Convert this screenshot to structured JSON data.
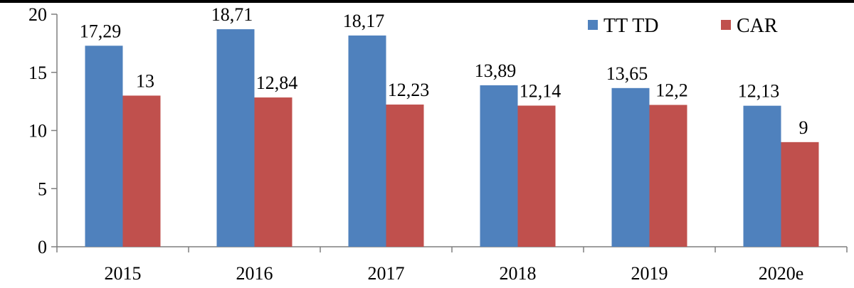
{
  "chart_data": {
    "type": "bar",
    "categories": [
      "2015",
      "2016",
      "2017",
      "2018",
      "2019",
      "2020e"
    ],
    "series": [
      {
        "name": "TT TD",
        "color": "#4f81bd",
        "values": [
          17.29,
          18.71,
          18.17,
          13.89,
          13.65,
          12.13
        ],
        "labels": [
          "17,29",
          "18,71",
          "18,17",
          "13,89",
          "13,65",
          "12,13"
        ]
      },
      {
        "name": "CAR",
        "color": "#c0504d",
        "values": [
          13,
          12.84,
          12.23,
          12.14,
          12.2,
          9
        ],
        "labels": [
          "13",
          "12,84",
          "12,23",
          "12,14",
          "12,2",
          "9"
        ]
      }
    ],
    "yticks": [
      "0",
      "5",
      "10",
      "15",
      "20"
    ],
    "ylim": [
      0,
      20
    ],
    "grid": false,
    "legend_position": "top-right"
  }
}
